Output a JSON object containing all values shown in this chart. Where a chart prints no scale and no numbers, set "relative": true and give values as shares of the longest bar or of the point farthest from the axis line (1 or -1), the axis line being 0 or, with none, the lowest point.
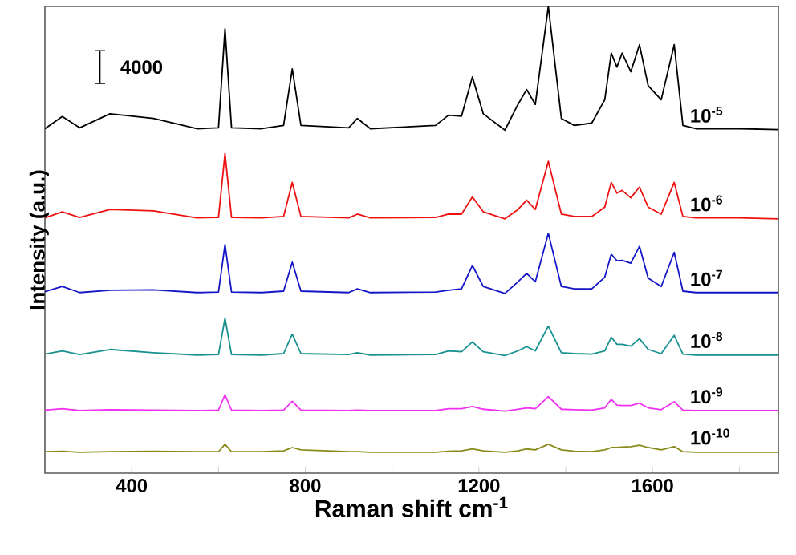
{
  "chart_data": {
    "type": "line",
    "relative": true,
    "xlabel": "Raman shift cm$^{-1}$",
    "ylabel": "Intensity (a.u.)",
    "annotations": [
      "4000"
    ],
    "xlim": [
      200,
      1890
    ],
    "xticks": [
      400,
      {
        "value": 600,
        "label": null
      },
      800,
      {
        "value": 1000,
        "label": null
      },
      1200,
      {
        "value": 1400,
        "label": null
      },
      1600,
      {
        "value": 1800,
        "label": null
      }
    ],
    "tick_labels": "x",
    "legend": false,
    "grid": false,
    "marker": "none",
    "line_style": "solid",
    "x": [
      200,
      240,
      280,
      350,
      450,
      550,
      600,
      615,
      630,
      700,
      750,
      770,
      790,
      900,
      920,
      950,
      1100,
      1130,
      1160,
      1185,
      1210,
      1260,
      1290,
      1310,
      1330,
      1360,
      1390,
      1420,
      1460,
      1490,
      1505,
      1518,
      1530,
      1550,
      1570,
      1590,
      1620,
      1650,
      1670,
      1700,
      1800,
      1890
    ],
    "series": [
      {
        "name": "10$^{-5}$",
        "color": "#000000",
        "values": [
          0.738,
          0.764,
          0.74,
          0.77,
          0.76,
          0.738,
          0.74,
          0.952,
          0.74,
          0.738,
          0.745,
          0.866,
          0.745,
          0.74,
          0.76,
          0.738,
          0.745,
          0.767,
          0.765,
          0.849,
          0.77,
          0.735,
          0.79,
          0.822,
          0.79,
          1.0,
          0.76,
          0.745,
          0.75,
          0.8,
          0.9,
          0.87,
          0.9,
          0.86,
          0.918,
          0.83,
          0.8,
          0.918,
          0.745,
          0.738,
          0.738,
          0.736
        ]
      },
      {
        "name": "10$^{-6}$",
        "color": "#ee1111",
        "values": [
          0.547,
          0.56,
          0.548,
          0.565,
          0.562,
          0.547,
          0.548,
          0.685,
          0.548,
          0.547,
          0.55,
          0.623,
          0.55,
          0.547,
          0.555,
          0.547,
          0.548,
          0.555,
          0.555,
          0.592,
          0.56,
          0.545,
          0.565,
          0.585,
          0.565,
          0.668,
          0.555,
          0.55,
          0.55,
          0.57,
          0.623,
          0.6,
          0.606,
          0.59,
          0.613,
          0.57,
          0.555,
          0.623,
          0.55,
          0.547,
          0.547,
          0.545
        ]
      },
      {
        "name": "10$^{-7}$",
        "color": "#1515c8",
        "values": [
          0.389,
          0.4,
          0.387,
          0.392,
          0.393,
          0.387,
          0.388,
          0.49,
          0.388,
          0.387,
          0.39,
          0.452,
          0.39,
          0.387,
          0.395,
          0.387,
          0.388,
          0.392,
          0.395,
          0.445,
          0.4,
          0.385,
          0.41,
          0.428,
          0.41,
          0.514,
          0.4,
          0.395,
          0.395,
          0.42,
          0.469,
          0.455,
          0.456,
          0.45,
          0.486,
          0.418,
          0.4,
          0.473,
          0.39,
          0.387,
          0.387,
          0.387
        ]
      },
      {
        "name": "10$^{-8}$",
        "color": "#1a9090",
        "values": [
          0.255,
          0.262,
          0.254,
          0.265,
          0.258,
          0.253,
          0.254,
          0.332,
          0.254,
          0.253,
          0.256,
          0.298,
          0.256,
          0.254,
          0.258,
          0.253,
          0.254,
          0.262,
          0.26,
          0.281,
          0.26,
          0.252,
          0.262,
          0.271,
          0.262,
          0.315,
          0.258,
          0.256,
          0.255,
          0.262,
          0.291,
          0.276,
          0.276,
          0.272,
          0.288,
          0.265,
          0.256,
          0.295,
          0.255,
          0.253,
          0.253,
          0.253
        ]
      },
      {
        "name": "10$^{-9}$",
        "color": "#f030f0",
        "values": [
          0.135,
          0.138,
          0.134,
          0.136,
          0.135,
          0.134,
          0.135,
          0.168,
          0.135,
          0.134,
          0.135,
          0.154,
          0.135,
          0.134,
          0.135,
          0.134,
          0.134,
          0.138,
          0.138,
          0.143,
          0.137,
          0.133,
          0.137,
          0.14,
          0.138,
          0.164,
          0.137,
          0.136,
          0.135,
          0.14,
          0.158,
          0.146,
          0.145,
          0.145,
          0.15,
          0.14,
          0.136,
          0.153,
          0.135,
          0.134,
          0.134,
          0.134
        ]
      },
      {
        "name": "10$^{-10}$",
        "color": "#8a8a1a",
        "values": [
          0.046,
          0.047,
          0.045,
          0.046,
          0.047,
          0.046,
          0.046,
          0.062,
          0.046,
          0.046,
          0.048,
          0.055,
          0.05,
          0.046,
          0.046,
          0.045,
          0.045,
          0.047,
          0.048,
          0.052,
          0.048,
          0.045,
          0.048,
          0.052,
          0.05,
          0.062,
          0.05,
          0.047,
          0.046,
          0.05,
          0.055,
          0.055,
          0.056,
          0.057,
          0.06,
          0.055,
          0.05,
          0.057,
          0.046,
          0.045,
          0.045,
          0.045
        ]
      }
    ]
  }
}
